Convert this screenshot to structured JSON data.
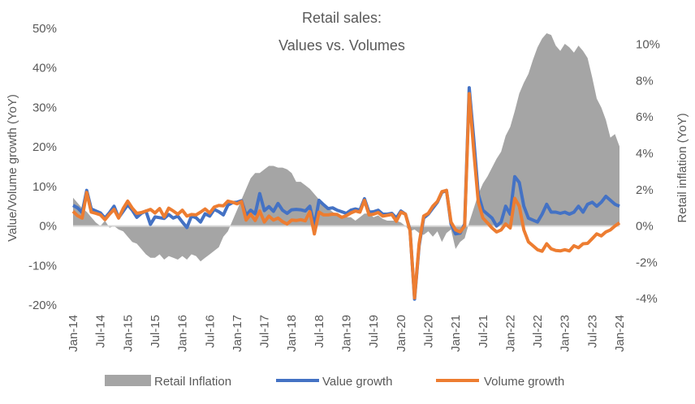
{
  "chart_data": {
    "type": "line",
    "title": [
      "Retail sales:",
      "Values vs. Volumes"
    ],
    "ylabel_left": "Value/Volume  growth (YoY)",
    "ylabel_right": "Retail inflation (YoY)",
    "ylim_left": [
      -20,
      50
    ],
    "ylim_right": [
      -4,
      10
    ],
    "yticks_left": [
      "-20%",
      "-10%",
      "0%",
      "10%",
      "20%",
      "30%",
      "40%",
      "50%"
    ],
    "yticks_right": [
      "-4%",
      "-2%",
      "0%",
      "2%",
      "4%",
      "6%",
      "8%",
      "10%"
    ],
    "xticks": [
      "Jan-14",
      "Jul-14",
      "Jan-15",
      "Jul-15",
      "Jan-16",
      "Jul-16",
      "Jan-17",
      "Jul-17",
      "Jan-18",
      "Jul-18",
      "Jan-19",
      "Jul-19",
      "Jan-20",
      "Jul-20",
      "Jan-21",
      "Jul-21",
      "Jan-22",
      "Jul-22",
      "Jan-23",
      "Jul-23",
      "Jan-24"
    ],
    "x_range": [
      "Jan-14",
      "Jan-24"
    ],
    "frequency": "monthly",
    "legend_position": "bottom",
    "grid": false,
    "series": [
      {
        "name": "Retail Inflation",
        "type": "area",
        "axis": "right",
        "color": "#A5A5A5",
        "values": [
          1.6,
          1.3,
          1.0,
          0.8,
          0.5,
          0.2,
          0.0,
          0.3,
          -0.1,
          0.0,
          -0.2,
          -0.3,
          -0.6,
          -0.9,
          -1.0,
          -1.3,
          -1.6,
          -1.8,
          -1.8,
          -1.6,
          -1.9,
          -1.7,
          -1.8,
          -1.9,
          -1.7,
          -1.9,
          -1.6,
          -1.7,
          -2.0,
          -1.8,
          -1.6,
          -1.4,
          -1.2,
          -0.6,
          -0.3,
          0.3,
          0.9,
          1.5,
          2.1,
          2.7,
          3.0,
          3.0,
          3.2,
          3.4,
          3.4,
          3.3,
          3.3,
          3.2,
          3.0,
          2.5,
          2.5,
          2.3,
          2.1,
          1.8,
          1.5,
          1.2,
          1.0,
          0.8,
          0.6,
          0.5,
          0.5,
          0.5,
          0.3,
          0.5,
          0.7,
          0.7,
          0.5,
          0.6,
          0.4,
          0.3,
          0.3,
          0.3,
          0.2,
          0.0,
          -0.3,
          -0.2,
          -0.4,
          -0.5,
          -0.3,
          -0.6,
          -0.3,
          -0.9,
          -0.4,
          -0.2,
          -1.3,
          -0.9,
          -0.7,
          0.2,
          1.0,
          1.8,
          2.4,
          2.8,
          3.3,
          3.8,
          4.2,
          5.1,
          5.6,
          6.5,
          7.5,
          8.1,
          8.6,
          9.4,
          10.1,
          10.6,
          10.9,
          10.8,
          10.2,
          9.9,
          10.3,
          10.1,
          9.8,
          10.2,
          9.9,
          9.5,
          8.4,
          7.2,
          6.7,
          6.0,
          5.0,
          5.2,
          4.5
        ]
      },
      {
        "name": "Value growth",
        "type": "line",
        "axis": "left",
        "color": "#4472C4",
        "values": [
          5.2,
          4.6,
          3.4,
          9.0,
          4.3,
          3.8,
          3.3,
          2.0,
          3.4,
          5.0,
          2.1,
          3.7,
          5.4,
          4.0,
          2.2,
          3.2,
          3.8,
          0.4,
          2.3,
          2.1,
          1.9,
          2.9,
          2.0,
          2.5,
          1.0,
          -0.4,
          2.5,
          2.1,
          1.0,
          3.1,
          2.5,
          4.2,
          3.6,
          2.8,
          5.3,
          5.9,
          6.0,
          6.4,
          2.7,
          4.0,
          3.1,
          8.2,
          3.9,
          4.9,
          3.7,
          5.7,
          4.0,
          3.2,
          4.1,
          4.2,
          4.1,
          3.8,
          5.0,
          0.0,
          6.5,
          5.4,
          4.4,
          4.6,
          4.0,
          3.6,
          3.2,
          4.0,
          4.3,
          4.0,
          6.9,
          3.5,
          3.6,
          4.0,
          3.0,
          3.0,
          3.2,
          2.0,
          3.8,
          3.0,
          -1.0,
          -18.5,
          -5.0,
          2.0,
          3.0,
          4.5,
          6.0,
          8.5,
          9.0,
          0.5,
          -2.0,
          -1.8,
          0.5,
          35.0,
          22.0,
          8.0,
          4.0,
          3.0,
          2.0,
          0.0,
          1.0,
          5.0,
          3.0,
          12.5,
          11.0,
          5.0,
          2.0,
          1.5,
          1.0,
          3.0,
          5.5,
          3.5,
          3.5,
          3.2,
          3.5,
          3.0,
          3.5,
          5.0,
          3.5,
          5.5,
          6.0,
          5.0,
          6.0,
          7.5,
          6.5,
          5.5,
          5.0
        ]
      },
      {
        "name": "Volume growth",
        "type": "line",
        "axis": "left",
        "color": "#ED7D31",
        "values": [
          3.7,
          2.6,
          2.0,
          8.5,
          3.5,
          3.2,
          2.8,
          1.6,
          3.0,
          4.2,
          2.0,
          4.4,
          6.3,
          4.5,
          3.2,
          3.4,
          3.8,
          4.2,
          3.3,
          4.4,
          2.3,
          4.5,
          3.8,
          3.0,
          4.0,
          2.5,
          2.9,
          2.8,
          3.5,
          4.3,
          3.3,
          4.8,
          5.2,
          5.1,
          6.3,
          6.0,
          5.6,
          6.2,
          1.5,
          3.0,
          1.4,
          3.8,
          1.0,
          2.5,
          1.5,
          2.0,
          1.1,
          0.5,
          1.5,
          1.4,
          1.6,
          1.3,
          3.6,
          -2.0,
          3.5,
          2.8,
          2.8,
          3.0,
          2.9,
          2.2,
          2.6,
          3.3,
          3.8,
          3.5,
          6.5,
          2.8,
          3.0,
          3.4,
          2.5,
          2.7,
          2.9,
          1.2,
          3.5,
          3.0,
          -1.2,
          -18.2,
          -4.5,
          2.5,
          3.2,
          5.0,
          6.2,
          8.7,
          9.0,
          1.0,
          -1.0,
          -1.5,
          0.0,
          33.5,
          19.0,
          6.0,
          2.0,
          0.8,
          -0.5,
          -1.5,
          -1.0,
          0.5,
          -0.5,
          7.0,
          5.0,
          -1.0,
          -4.0,
          -5.0,
          -6.0,
          -6.4,
          -4.5,
          -5.8,
          -6.2,
          -6.3,
          -6.0,
          -6.3,
          -5.0,
          -5.5,
          -4.5,
          -4.4,
          -3.2,
          -2.0,
          -2.5,
          -1.5,
          -1.0,
          0.0,
          0.8
        ]
      }
    ]
  }
}
